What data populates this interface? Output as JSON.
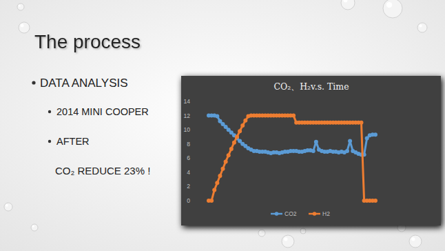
{
  "slide": {
    "title": "The process",
    "bullets": [
      "DATA ANALYSIS"
    ],
    "sub_bullets": [
      "2014 MINI COOPER",
      "AFTER"
    ],
    "note": "CO₂ REDUCE 23% !"
  },
  "chart_data": {
    "type": "line",
    "title": "CO₂、H₂v.s. Time",
    "categories": [
      null,
      null,
      null,
      null,
      null,
      null,
      null,
      null,
      null,
      null,
      null,
      null,
      null,
      null,
      null,
      null,
      null,
      null,
      null,
      null,
      null,
      null,
      null,
      null,
      null,
      null,
      null,
      null,
      null,
      null,
      null,
      null,
      null,
      null,
      null,
      null,
      null,
      null,
      null,
      null,
      null,
      null,
      null,
      null,
      null,
      null,
      null,
      null,
      null,
      null,
      null,
      null,
      null,
      null,
      null,
      null,
      null,
      null,
      null,
      null
    ],
    "series": [
      {
        "name": "CO2",
        "color": "#5b9bd5",
        "marker": "circle",
        "values": [
          12,
          12,
          12,
          11.9,
          11.2,
          10.8,
          10.4,
          10.0,
          9.6,
          9.2,
          8.8,
          8.4,
          8.0,
          7.7,
          7.4,
          7.2,
          7.0,
          7.0,
          6.9,
          6.9,
          6.9,
          6.8,
          6.7,
          6.8,
          6.8,
          6.7,
          6.8,
          6.9,
          6.9,
          7.0,
          7.0,
          7.0,
          6.9,
          6.9,
          7.0,
          7.1,
          7.1,
          7.0,
          8.3,
          7.2,
          7.0,
          6.9,
          6.9,
          7.0,
          6.9,
          6.9,
          6.8,
          6.9,
          6.8,
          7.0,
          8.4,
          7.0,
          6.8,
          6.6,
          6.5,
          6.5,
          8.8,
          9.2,
          9.3,
          9.3
        ]
      },
      {
        "name": "H2",
        "color": "#ed7d31",
        "marker": "circle",
        "values": [
          0,
          0,
          1.5,
          2.5,
          3.5,
          4.5,
          5.5,
          6.4,
          7.3,
          8.2,
          9.0,
          9.8,
          10.6,
          11.3,
          11.9,
          12,
          12,
          12,
          12,
          12,
          12,
          12,
          12,
          12,
          12,
          12,
          12,
          12,
          12,
          12,
          12,
          11,
          11,
          11,
          11,
          11,
          11,
          11,
          11,
          11,
          11,
          11,
          11,
          11,
          11,
          11,
          11,
          11,
          11,
          11,
          11,
          11,
          11,
          11,
          11,
          0,
          0,
          0,
          0,
          0
        ]
      }
    ],
    "ylim": [
      0,
      14
    ],
    "yticks": [
      0,
      2,
      4,
      6,
      8,
      10,
      12,
      14
    ],
    "grid": false,
    "legend": "bottom",
    "tick_labels": "y"
  }
}
